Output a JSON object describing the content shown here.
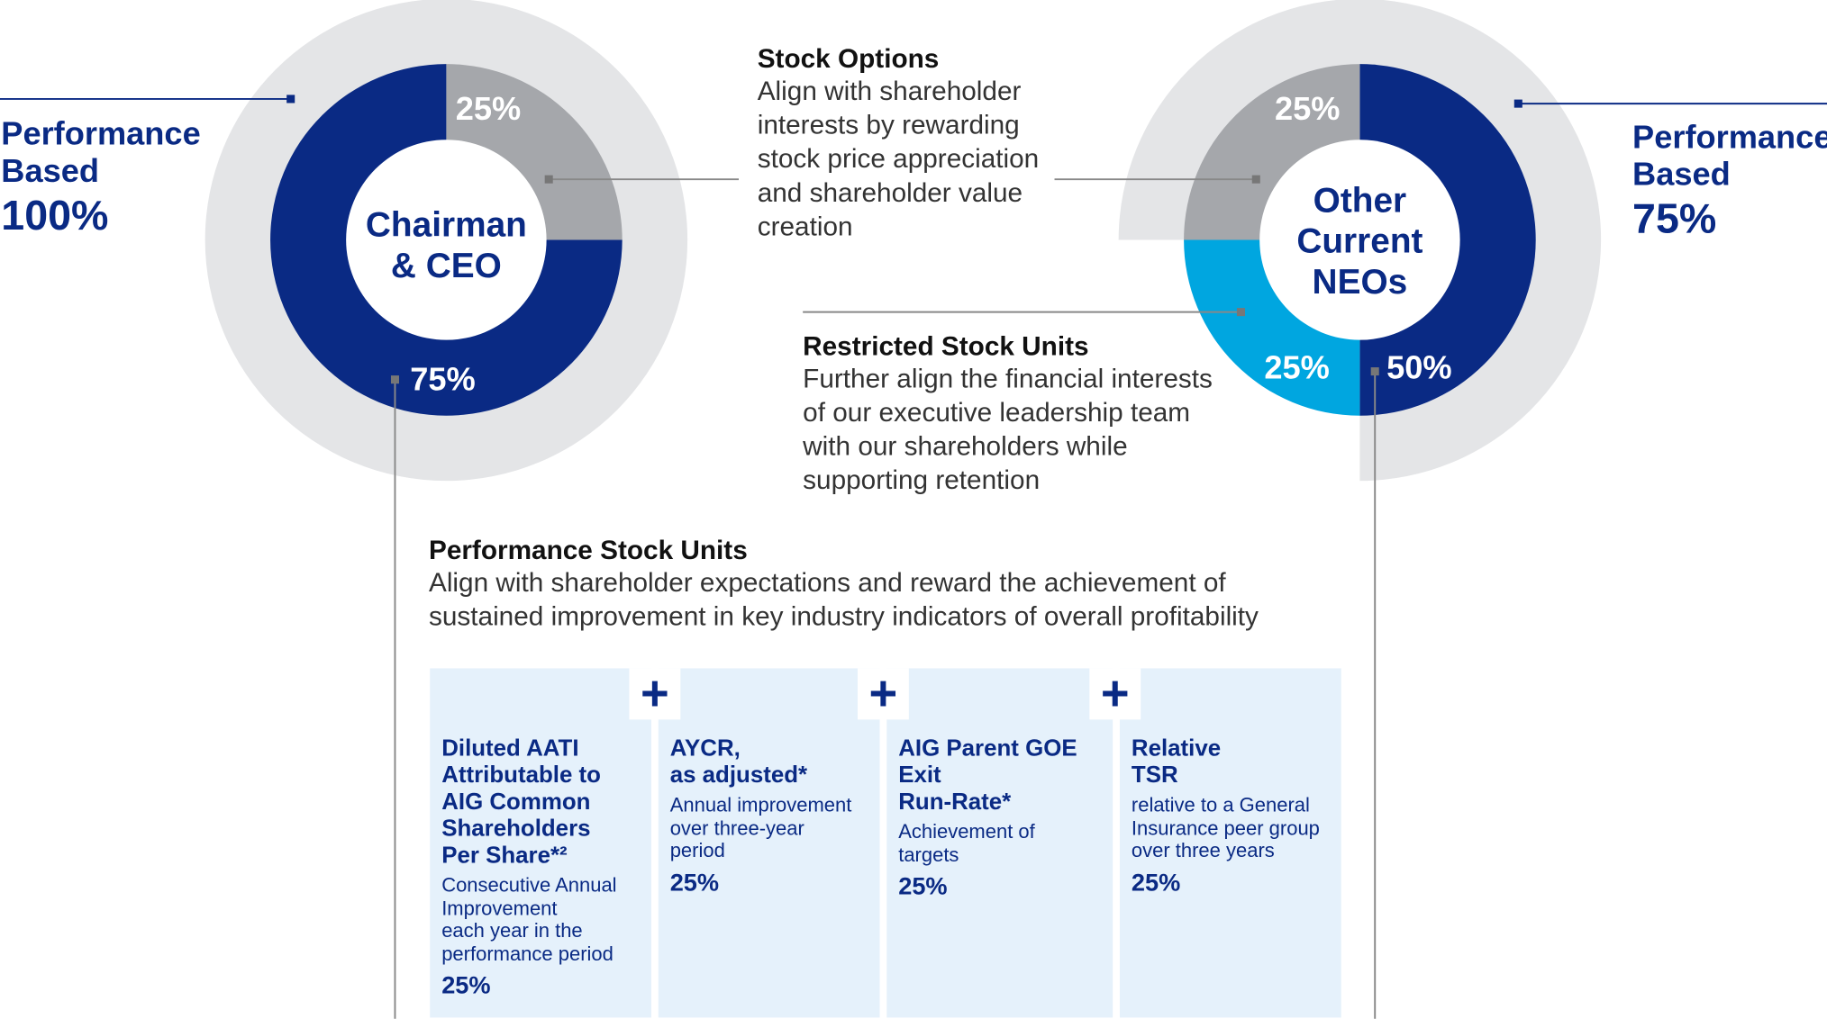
{
  "colors": {
    "navy": "#0a2a84",
    "gray_segment": "#a5a7ab",
    "light_blue_segment": "#00a6e0",
    "halo": "#e4e5e7",
    "connector": "#888888",
    "box_fill": "#e5f1fb"
  },
  "chart_data": [
    {
      "type": "pie",
      "title": "Chairman & CEO",
      "slices": [
        {
          "label": "Stock Options",
          "value": 25,
          "display": "25%"
        },
        {
          "label": "Performance Stock Units",
          "value": 75,
          "display": "75%"
        }
      ],
      "performance_based": {
        "label": "Performance Based",
        "value": "100%"
      }
    },
    {
      "type": "pie",
      "title": "Other Current NEOs",
      "slices": [
        {
          "label": "Performance Stock Units",
          "value": 50,
          "display": "50%"
        },
        {
          "label": "Restricted Stock Units",
          "value": 25,
          "display": "25%"
        },
        {
          "label": "Stock Options",
          "value": 25,
          "display": "25%"
        }
      ],
      "performance_based": {
        "label": "Performance Based",
        "value": "75%"
      }
    }
  ],
  "ceo": {
    "pb_line1": "Performance",
    "pb_line2": "Based",
    "pb_value": "100%",
    "center_line1": "Chairman",
    "center_line2": "& CEO",
    "seg_options": "25%",
    "seg_psu": "75%"
  },
  "neo": {
    "pb_line1": "Performance",
    "pb_line2": "Based",
    "pb_value": "75%",
    "center_line1": "Other",
    "center_line2": "Current",
    "center_line3": "NEOs",
    "seg_options": "25%",
    "seg_rsu": "25%",
    "seg_psu": "50%"
  },
  "stock_options": {
    "title": "Stock Options",
    "lines": [
      "Align with shareholder",
      "interests by rewarding",
      "stock price appreciation",
      "and shareholder value",
      "creation"
    ]
  },
  "rsu": {
    "title": "Restricted Stock Units",
    "lines": [
      "Further align the financial interests",
      "of our executive leadership team",
      "with our shareholders while",
      "supporting retention"
    ]
  },
  "psu": {
    "title": "Performance Stock Units",
    "lines": [
      "Align with shareholder expectations and reward the achievement of",
      "sustained improvement in key industry indicators of overall profitability"
    ]
  },
  "plus_symbol": "+",
  "metrics": [
    {
      "title_lines": [
        "Diluted AATI",
        "Attributable to",
        "AIG Common",
        "Shareholders",
        "Per Share*²"
      ],
      "desc_lines": [
        "Consecutive Annual",
        "Improvement",
        "each year in the",
        "performance period"
      ],
      "weight": "25%"
    },
    {
      "title_lines": [
        "AYCR,",
        "as adjusted*"
      ],
      "desc_lines": [
        "Annual improvement",
        "over three-year",
        "period"
      ],
      "weight": "25%"
    },
    {
      "title_lines": [
        "AIG Parent GOE Exit",
        "Run-Rate*"
      ],
      "desc_lines": [
        "Achievement of",
        "targets"
      ],
      "weight": "25%"
    },
    {
      "title_lines": [
        "Relative",
        "TSR"
      ],
      "desc_lines": [
        "relative to a General",
        "Insurance peer group",
        "over three years"
      ],
      "weight": "25%"
    }
  ]
}
